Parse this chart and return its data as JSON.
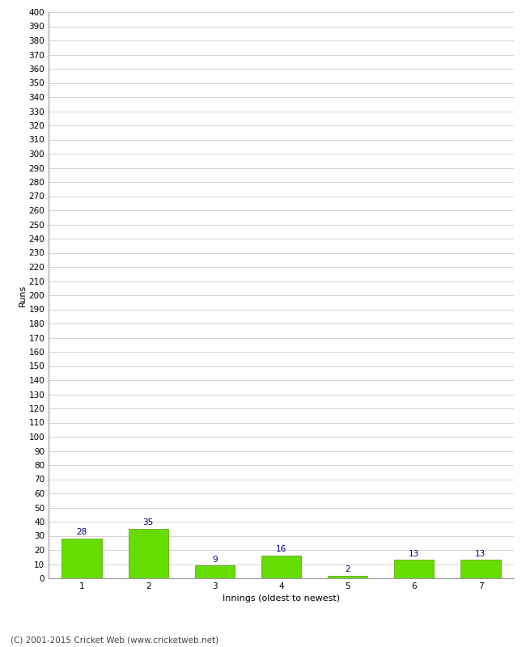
{
  "categories": [
    "1",
    "2",
    "3",
    "4",
    "5",
    "6",
    "7"
  ],
  "values": [
    28,
    35,
    9,
    16,
    2,
    13,
    13
  ],
  "bar_color": "#66dd00",
  "bar_edge_color": "#559900",
  "label_color": "#000080",
  "ylabel": "Runs",
  "xlabel": "Innings (oldest to newest)",
  "ylim": [
    0,
    400
  ],
  "ytick_step": 10,
  "background_color": "#ffffff",
  "grid_color": "#cccccc",
  "footer_text": "(C) 2001-2015 Cricket Web (www.cricketweb.net)",
  "footer_color": "#444444",
  "label_fontsize": 7.5,
  "axis_label_fontsize": 8,
  "tick_fontsize": 7.5,
  "footer_fontsize": 7.5
}
